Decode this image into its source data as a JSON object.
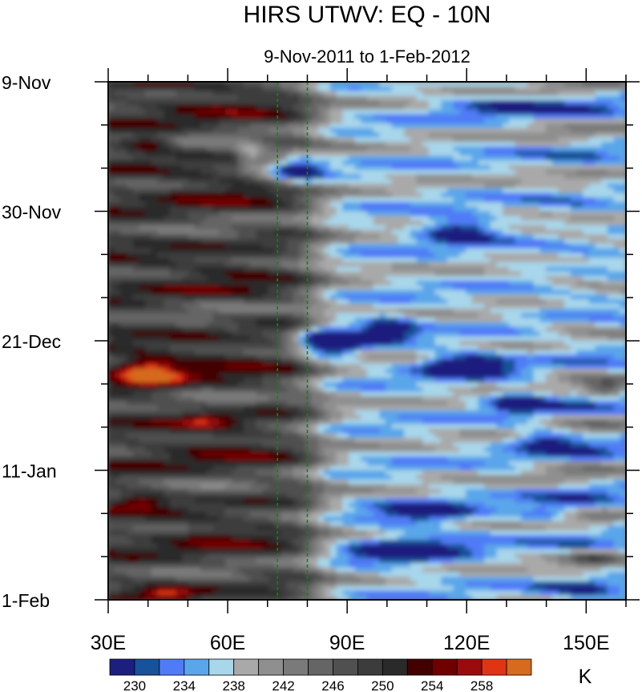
{
  "chart_data": {
    "type": "heatmap",
    "title": "HIRS UTWV: EQ - 10N",
    "subtitle": "9-Nov-2011 to 1-Feb-2012",
    "xlabel": "",
    "ylabel": "",
    "x_range": [
      30,
      160
    ],
    "x_ticks": [
      {
        "value": 30,
        "label": "30E"
      },
      {
        "value": 60,
        "label": "60E"
      },
      {
        "value": 90,
        "label": "90E"
      },
      {
        "value": 120,
        "label": "120E"
      },
      {
        "value": 150,
        "label": "150E"
      }
    ],
    "y_range_days": [
      0,
      84
    ],
    "y_ticks": [
      {
        "day": 0,
        "label": "9-Nov"
      },
      {
        "day": 21,
        "label": "30-Nov"
      },
      {
        "day": 42,
        "label": "21-Dec"
      },
      {
        "day": 63,
        "label": "11-Jan"
      },
      {
        "day": 84,
        "label": "1-Feb"
      }
    ],
    "reference_lines_lon": [
      72.5,
      80
    ],
    "colorbar": {
      "units": "K",
      "levels": [
        228,
        230,
        232,
        234,
        236,
        238,
        240,
        242,
        244,
        246,
        248,
        250,
        252,
        254,
        256,
        258,
        260
      ],
      "labeled": [
        "230",
        "234",
        "238",
        "242",
        "246",
        "250",
        "254",
        "258"
      ],
      "colors": [
        "#1d1f7f",
        "#17529a",
        "#4f7cf6",
        "#5aa6ea",
        "#a8d6ea",
        "#a9a9a9",
        "#8f8f8f",
        "#7a7a7a",
        "#656565",
        "#505050",
        "#3c3c3c",
        "#2a2a2a",
        "#430000",
        "#6e0000",
        "#9b0b0b",
        "#e03515",
        "#d66a1e"
      ]
    },
    "field_description": "Brightness temperature (K); coolest/moist (blue, 230-238 K) over ~75E-160E, warmest/dry (red, 254-260 K) patches near 30E-60E in mid December"
  }
}
